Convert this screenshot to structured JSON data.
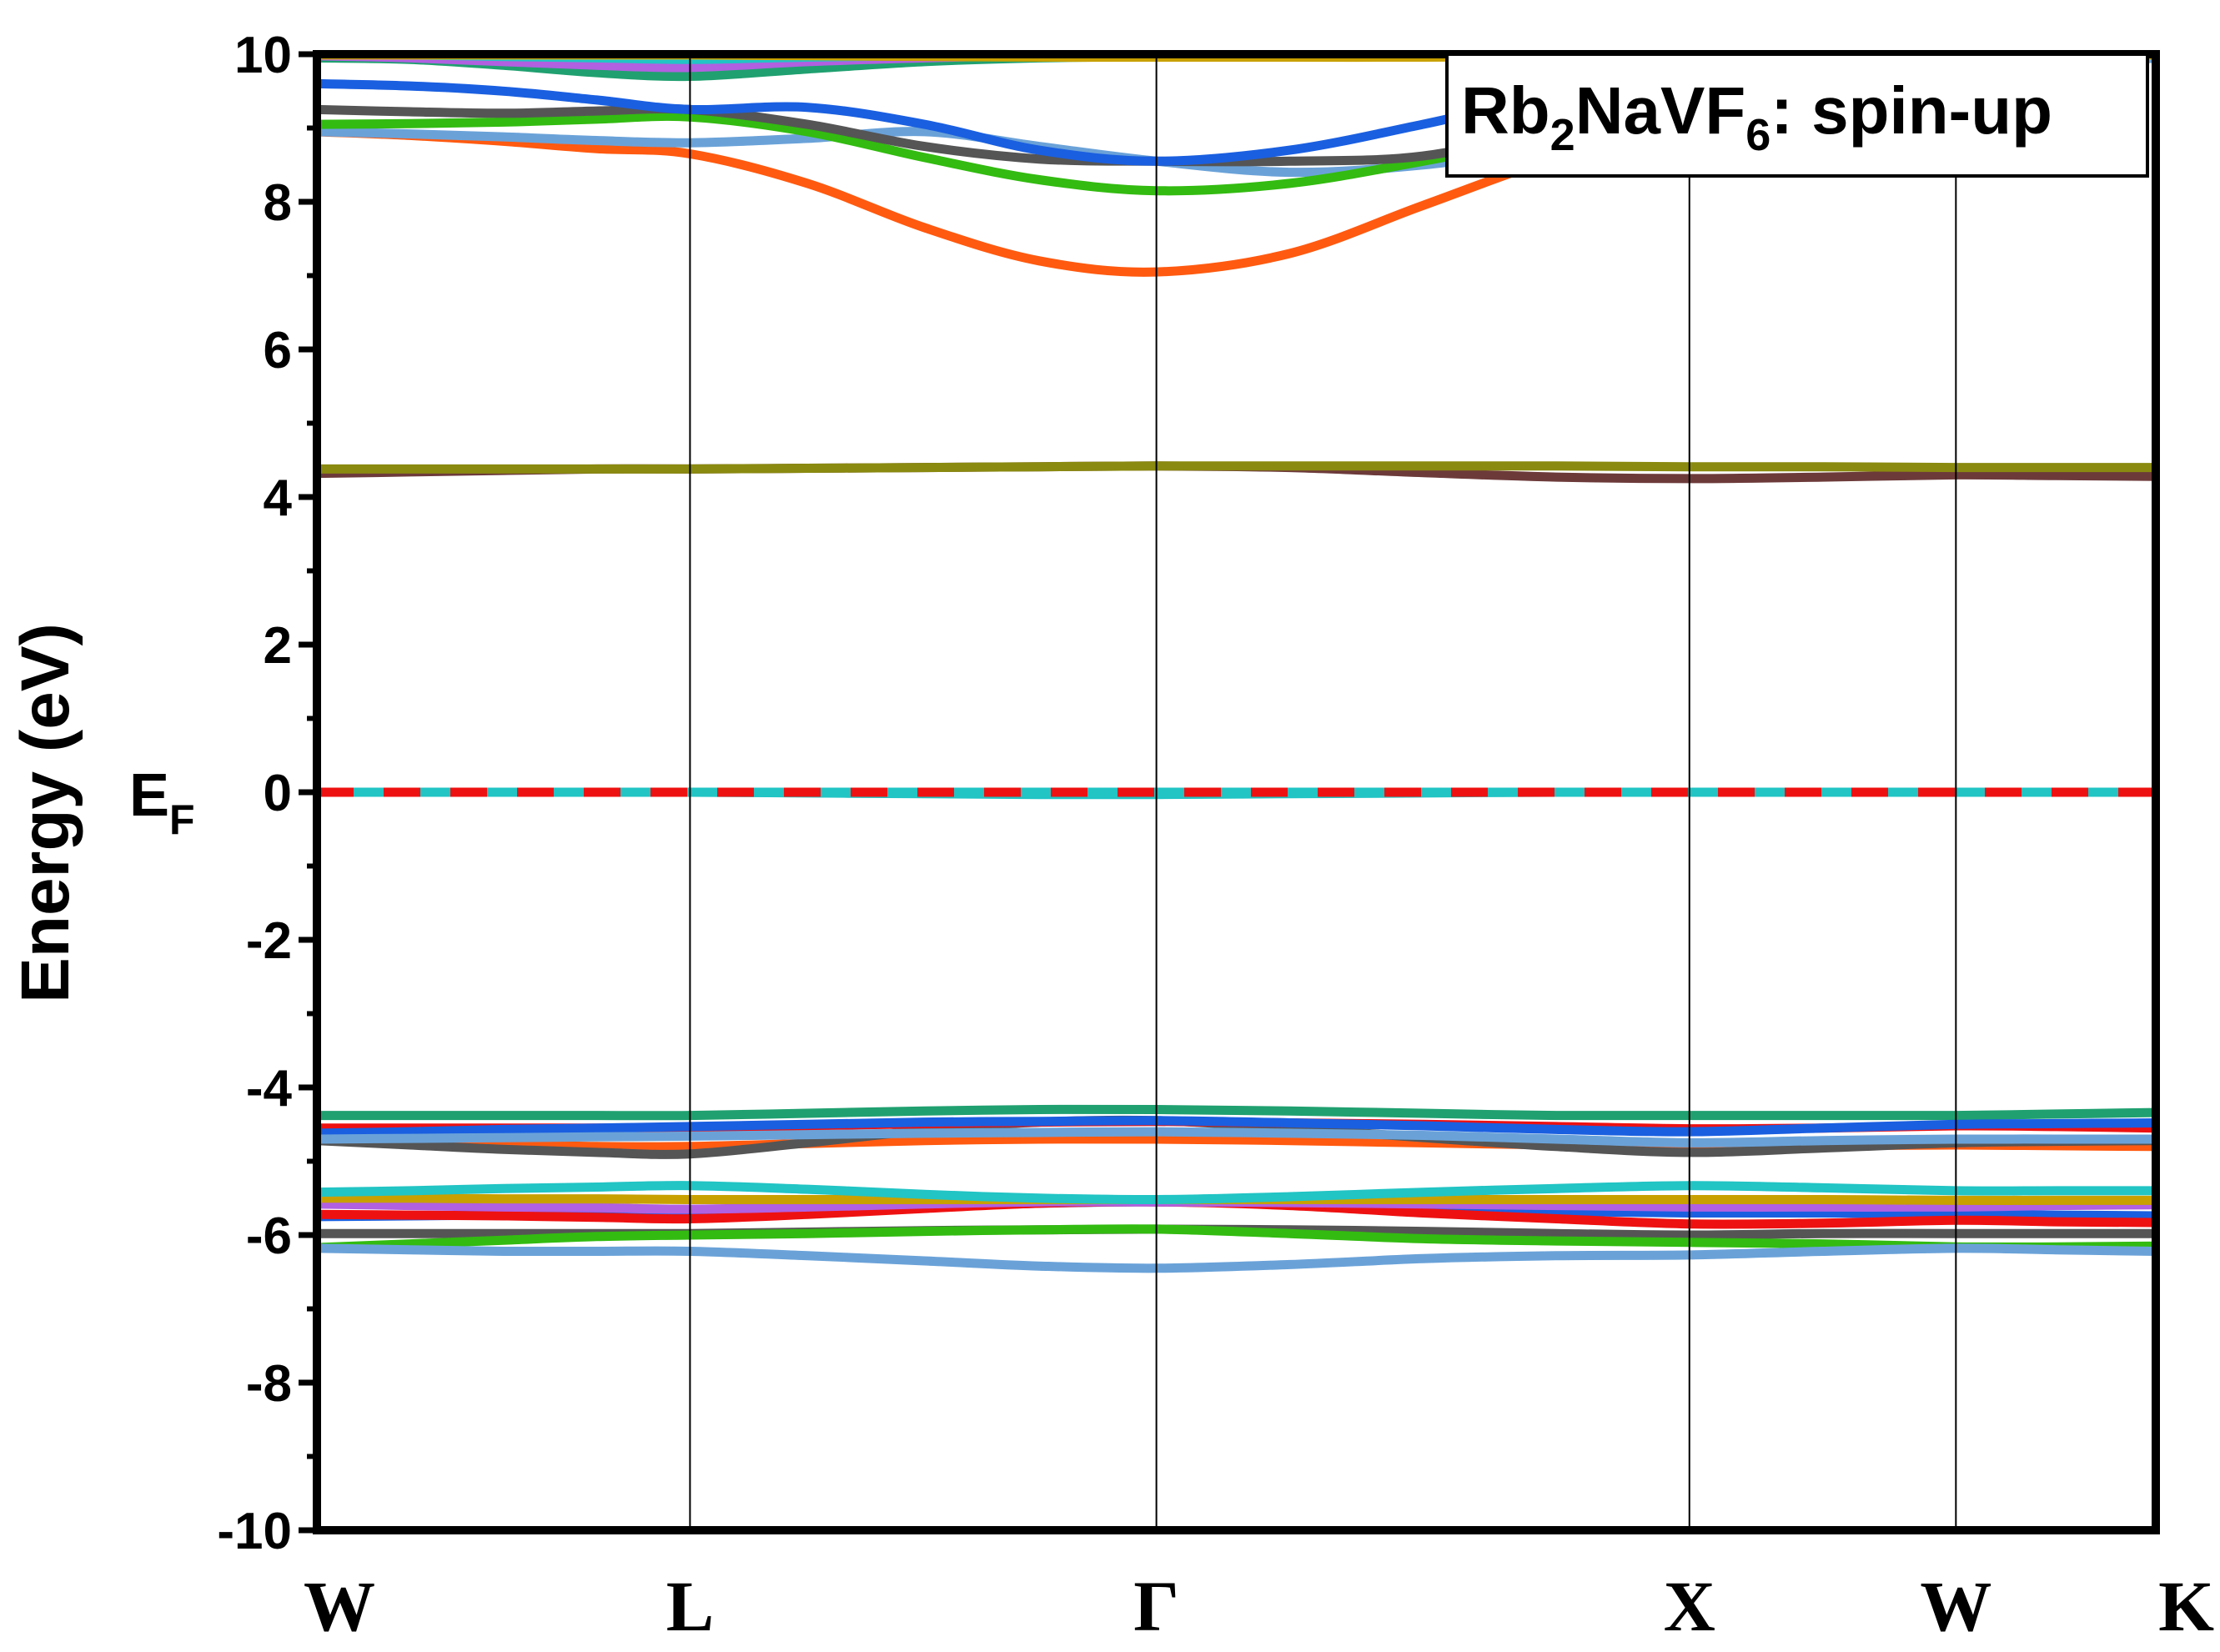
{
  "chart_data": {
    "type": "line",
    "title_box": {
      "base": "Rb",
      "sub1": "2",
      "mid": "NaVF",
      "sub2": "6",
      "tail": ": spin-up"
    },
    "ylabel": "Energy (eV)",
    "ef_label": {
      "base": "E",
      "sub": "F"
    },
    "ylim": [
      -10,
      10
    ],
    "yticks": [
      -10,
      -8,
      -6,
      -4,
      -2,
      0,
      2,
      4,
      6,
      8,
      10
    ],
    "ytick_labels": [
      "-10",
      "-8",
      "-6",
      "-4",
      "-2",
      "0",
      "2",
      "4",
      "6",
      "8",
      "10"
    ],
    "xlim": [
      0,
      6.9
    ],
    "kpoints": [
      {
        "label": "W",
        "x": 0
      },
      {
        "label": "L",
        "x": 1.4
      },
      {
        "label": "Γ",
        "x": 3.15
      },
      {
        "label": "X",
        "x": 5.15
      },
      {
        "label": "W",
        "x": 6.15
      },
      {
        "label": "K",
        "x": 6.9
      }
    ],
    "fermi_level": 0,
    "grid": false,
    "legend_position": "top-right",
    "x": [
      0,
      0.35,
      0.7,
      1.05,
      1.4,
      1.84,
      2.28,
      2.71,
      3.15,
      3.65,
      4.15,
      4.65,
      5.15,
      5.65,
      6.15,
      6.525,
      6.9
    ],
    "series": [
      {
        "color": "#1a5fe0",
        "values": [
          -5.75,
          -5.74,
          -5.73,
          -5.73,
          -5.73,
          -5.68,
          -5.62,
          -5.57,
          -5.55,
          -5.58,
          -5.63,
          -5.68,
          -5.7,
          -5.7,
          -5.72,
          -5.73,
          -5.74
        ]
      },
      {
        "color": "#ee1111",
        "values": [
          -5.72,
          -5.73,
          -5.74,
          -5.76,
          -5.78,
          -5.72,
          -5.64,
          -5.57,
          -5.55,
          -5.6,
          -5.7,
          -5.78,
          -5.85,
          -5.84,
          -5.8,
          -5.82,
          -5.83
        ]
      },
      {
        "color": "#b060e0",
        "values": [
          -5.58,
          -5.6,
          -5.62,
          -5.63,
          -5.65,
          -5.62,
          -5.58,
          -5.55,
          -5.55,
          -5.56,
          -5.58,
          -5.6,
          -5.62,
          -5.62,
          -5.62,
          -5.6,
          -5.59
        ]
      },
      {
        "color": "#c8a000",
        "values": [
          -5.5,
          -5.5,
          -5.51,
          -5.51,
          -5.52,
          -5.52,
          -5.52,
          -5.52,
          -5.52,
          -5.52,
          -5.52,
          -5.52,
          -5.52,
          -5.52,
          -5.53,
          -5.53,
          -5.53
        ]
      },
      {
        "color": "#22c4c4",
        "values": [
          -5.42,
          -5.4,
          -5.37,
          -5.35,
          -5.33,
          -5.38,
          -5.45,
          -5.5,
          -5.52,
          -5.48,
          -5.42,
          -5.37,
          -5.33,
          -5.36,
          -5.4,
          -5.4,
          -5.4
        ]
      },
      {
        "color": "#555555",
        "values": [
          -5.98,
          -5.98,
          -5.98,
          -5.98,
          -5.98,
          -5.96,
          -5.94,
          -5.93,
          -5.92,
          -5.93,
          -5.95,
          -5.98,
          -6.0,
          -5.98,
          -5.98,
          -5.98,
          -5.98
        ]
      },
      {
        "color": "#33bb11",
        "values": [
          -6.17,
          -6.12,
          -6.07,
          -6.02,
          -6.0,
          -5.98,
          -5.95,
          -5.93,
          -5.92,
          -5.98,
          -6.05,
          -6.08,
          -6.1,
          -6.12,
          -6.16,
          -6.16,
          -6.15
        ]
      },
      {
        "color": "#6aa2d8",
        "values": [
          -6.18,
          -6.2,
          -6.22,
          -6.22,
          -6.22,
          -6.28,
          -6.35,
          -6.42,
          -6.45,
          -6.4,
          -6.32,
          -6.28,
          -6.27,
          -6.22,
          -6.18,
          -6.2,
          -6.22
        ]
      },
      {
        "color": "#20a070",
        "values": [
          -4.38,
          -4.38,
          -4.38,
          -4.38,
          -4.38,
          -4.35,
          -4.32,
          -4.3,
          -4.3,
          -4.32,
          -4.35,
          -4.38,
          -4.38,
          -4.38,
          -4.38,
          -4.36,
          -4.34
        ]
      },
      {
        "color": "#ff5a10",
        "values": [
          -4.72,
          -4.74,
          -4.77,
          -4.8,
          -4.8,
          -4.76,
          -4.72,
          -4.7,
          -4.7,
          -4.72,
          -4.75,
          -4.78,
          -4.8,
          -4.79,
          -4.78,
          -4.79,
          -4.8
        ]
      },
      {
        "color": "#555555",
        "values": [
          -4.72,
          -4.78,
          -4.84,
          -4.88,
          -4.9,
          -4.75,
          -4.58,
          -4.47,
          -4.45,
          -4.55,
          -4.68,
          -4.8,
          -4.88,
          -4.82,
          -4.75,
          -4.73,
          -4.72
        ]
      },
      {
        "color": "#ee1111",
        "values": [
          -4.55,
          -4.55,
          -4.55,
          -4.55,
          -4.55,
          -4.52,
          -4.49,
          -4.47,
          -4.46,
          -4.48,
          -4.5,
          -4.53,
          -4.56,
          -4.55,
          -4.52,
          -4.53,
          -4.55
        ]
      },
      {
        "color": "#1a5fe0",
        "values": [
          -4.62,
          -4.6,
          -4.57,
          -4.55,
          -4.53,
          -4.5,
          -4.47,
          -4.46,
          -4.45,
          -4.48,
          -4.52,
          -4.57,
          -4.6,
          -4.55,
          -4.5,
          -4.49,
          -4.48
        ]
      },
      {
        "color": "#6aa2d8",
        "values": [
          -4.7,
          -4.69,
          -4.68,
          -4.67,
          -4.66,
          -4.64,
          -4.62,
          -4.61,
          -4.6,
          -4.62,
          -4.65,
          -4.7,
          -4.75,
          -4.72,
          -4.7,
          -4.7,
          -4.7
        ]
      },
      {
        "color": "#22c4c4",
        "values": [
          0,
          0,
          0,
          0,
          0,
          -0.01,
          -0.02,
          -0.03,
          -0.03,
          -0.02,
          -0.01,
          0,
          0,
          0,
          0,
          0,
          0
        ]
      },
      {
        "color": "#6d3a3a",
        "values": [
          4.32,
          4.34,
          4.36,
          4.38,
          4.38,
          4.39,
          4.4,
          4.41,
          4.42,
          4.4,
          4.33,
          4.27,
          4.25,
          4.27,
          4.3,
          4.29,
          4.28
        ]
      },
      {
        "color": "#8a8a10",
        "values": [
          4.38,
          4.38,
          4.38,
          4.38,
          4.38,
          4.39,
          4.4,
          4.41,
          4.42,
          4.42,
          4.42,
          4.42,
          4.41,
          4.41,
          4.4,
          4.4,
          4.4
        ]
      },
      {
        "color": "#ff5a10",
        "values": [
          8.95,
          8.9,
          8.82,
          8.72,
          8.65,
          8.25,
          7.65,
          7.2,
          7.05,
          7.3,
          7.95,
          8.6,
          9.1,
          9.5,
          9.75,
          9.9,
          10.0
        ]
      },
      {
        "color": "#6aa2d8",
        "values": [
          8.95,
          8.92,
          8.88,
          8.83,
          8.8,
          8.86,
          8.95,
          8.75,
          8.55,
          8.4,
          8.5,
          8.75,
          9.0,
          9.3,
          9.6,
          9.8,
          9.95
        ]
      },
      {
        "color": "#33bb11",
        "values": [
          9.05,
          9.06,
          9.08,
          9.12,
          9.15,
          8.95,
          8.6,
          8.3,
          8.15,
          8.25,
          8.55,
          8.9,
          9.2,
          9.5,
          9.8,
          9.95,
          10.0
        ]
      },
      {
        "color": "#555555",
        "values": [
          9.25,
          9.22,
          9.2,
          9.23,
          9.25,
          9.05,
          8.75,
          8.58,
          8.55,
          8.55,
          8.62,
          9.0,
          9.4,
          9.65,
          9.85,
          9.95,
          10.0
        ]
      },
      {
        "color": "#1a5fe0",
        "values": [
          9.6,
          9.57,
          9.5,
          9.38,
          9.25,
          9.28,
          9.05,
          8.7,
          8.55,
          8.7,
          9.05,
          9.45,
          9.75,
          9.85,
          9.95,
          10.0,
          10.0
        ]
      },
      {
        "color": "#20a070",
        "values": [
          9.95,
          9.93,
          9.85,
          9.75,
          9.7,
          9.8,
          9.9,
          9.95,
          9.97,
          9.97,
          9.97,
          9.98,
          9.98,
          9.98,
          9.99,
          10.0,
          10.0
        ]
      },
      {
        "color": "#b060e0",
        "values": [
          9.98,
          9.95,
          9.9,
          9.85,
          9.82,
          9.9,
          9.95,
          9.98,
          9.98,
          9.98,
          9.98,
          9.98,
          9.99,
          9.99,
          9.99,
          10.0,
          10.0
        ]
      },
      {
        "color": "#22c4c4",
        "values": [
          10.0,
          9.99,
          9.97,
          9.95,
          9.93,
          9.96,
          9.98,
          9.99,
          10.0,
          10.0,
          10.0,
          10.0,
          10.0,
          10.0,
          10.0,
          10.0,
          10.0
        ]
      },
      {
        "color": "#c8a000",
        "values": [
          9.99,
          9.99,
          9.99,
          9.99,
          9.99,
          9.98,
          9.97,
          9.96,
          9.96,
          9.96,
          9.96,
          9.97,
          9.98,
          9.98,
          9.99,
          9.99,
          9.99
        ]
      }
    ],
    "fermi_line": {
      "color_dash": "#ee1111",
      "color_gap": "#22c4c4"
    }
  }
}
